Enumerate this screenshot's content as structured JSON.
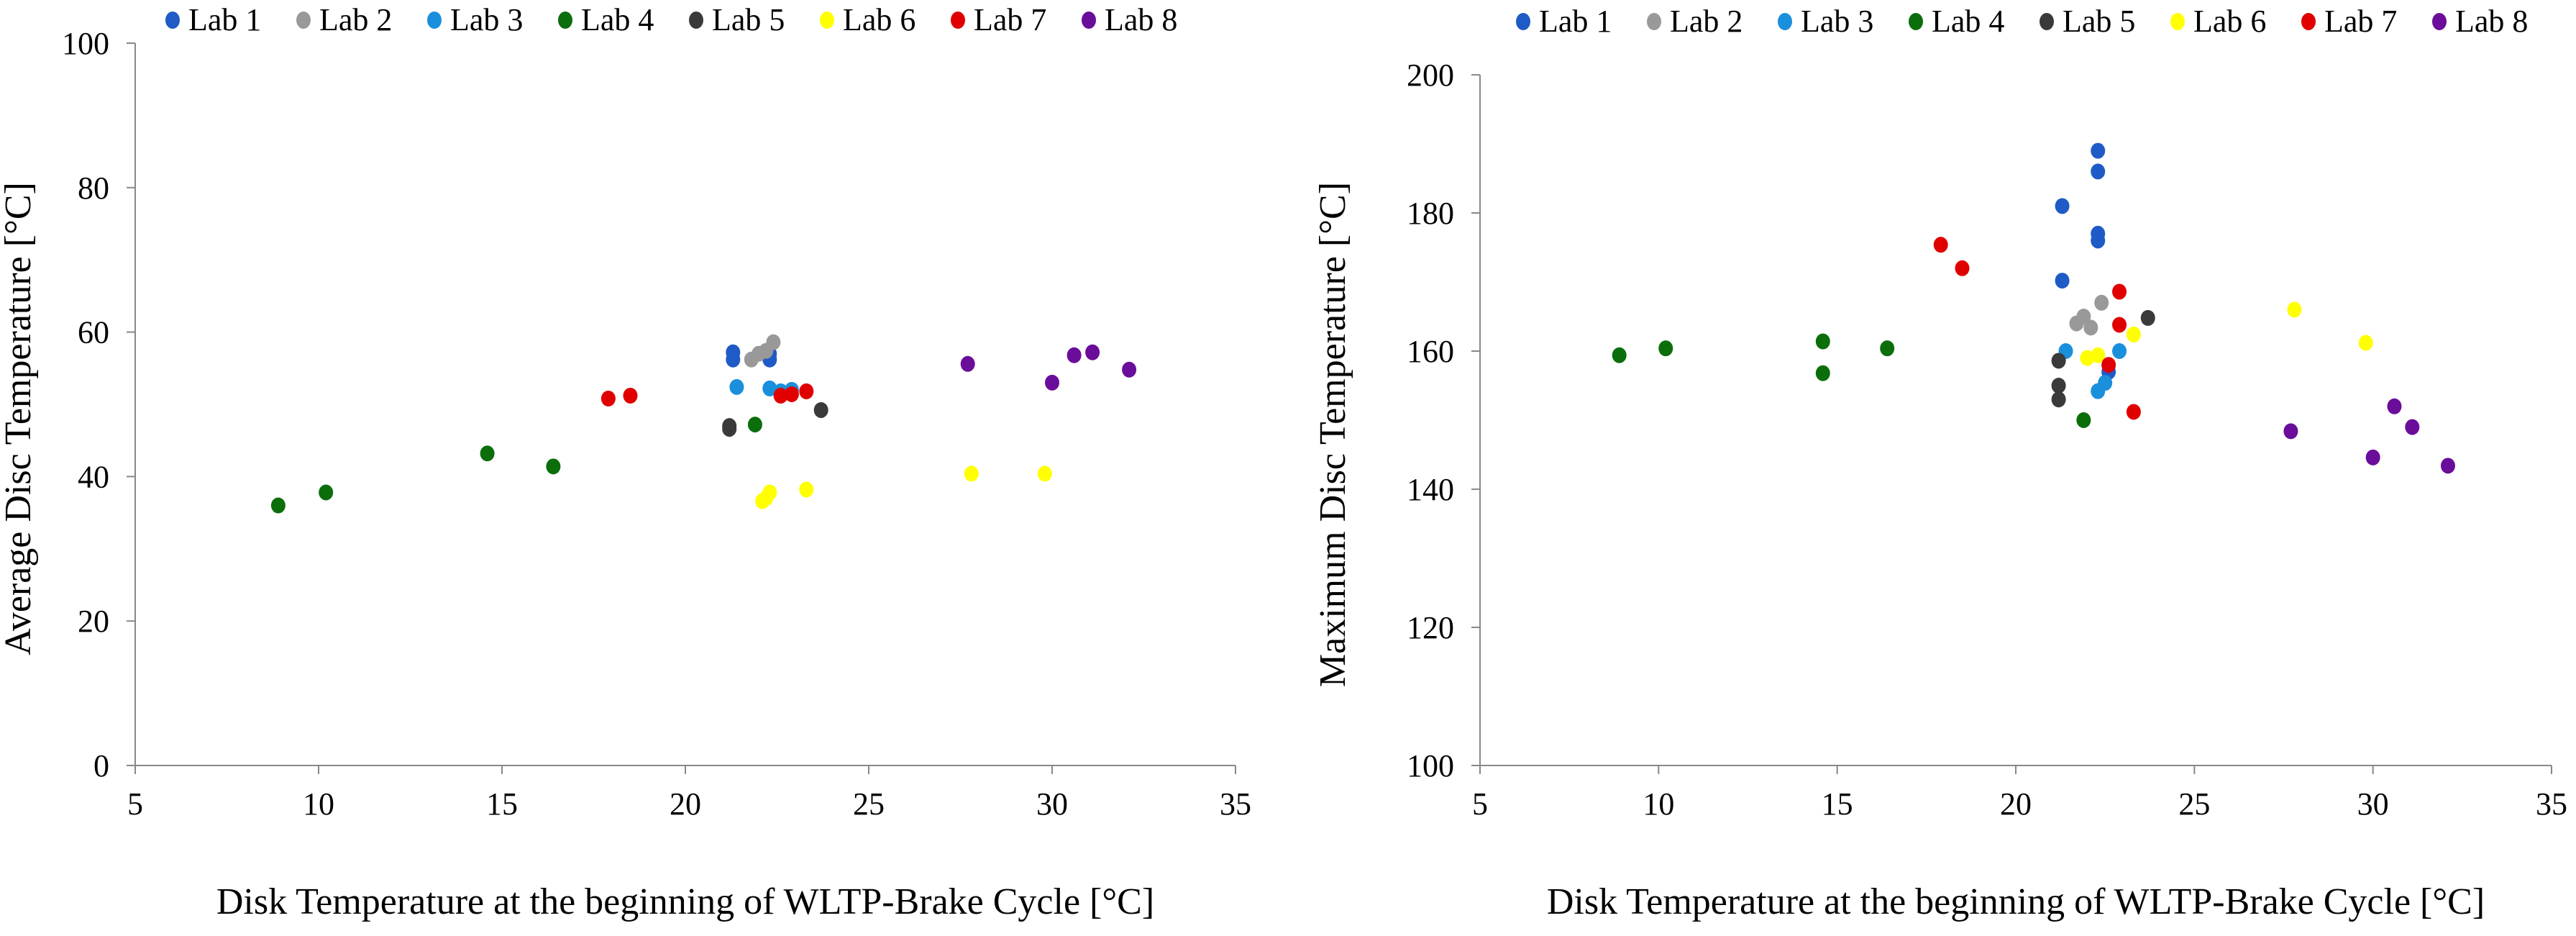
{
  "chart_data": [
    {
      "type": "scatter",
      "xlabel": "Disk Temperature at the beginning of WLTP-Brake Cycle [°C]",
      "ylabel": "Average Disc Temperature [°C]",
      "xlim": [
        5,
        35
      ],
      "ylim": [
        0,
        100
      ],
      "x_ticks": [
        5,
        10,
        15,
        20,
        25,
        30,
        35
      ],
      "y_ticks": [
        0,
        20,
        40,
        60,
        80,
        100
      ],
      "grid": false,
      "legend_position": "top",
      "series": [
        {
          "name": "Lab 1",
          "color": "#1f5bc6",
          "points": [
            [
              21.3,
              57.2
            ],
            [
              21.3,
              56.2
            ],
            [
              22.3,
              57.0
            ],
            [
              22.3,
              56.2
            ]
          ]
        },
        {
          "name": "Lab 2",
          "color": "#999999",
          "points": [
            [
              21.8,
              56.2
            ],
            [
              22.0,
              57.0
            ],
            [
              22.2,
              57.4
            ],
            [
              22.4,
              58.6
            ]
          ]
        },
        {
          "name": "Lab 3",
          "color": "#1a8fdc",
          "points": [
            [
              21.4,
              52.4
            ],
            [
              22.3,
              52.2
            ],
            [
              22.6,
              51.8
            ],
            [
              22.9,
              52.0
            ]
          ]
        },
        {
          "name": "Lab 4",
          "color": "#0b6e0b",
          "points": [
            [
              8.9,
              36.0
            ],
            [
              10.2,
              37.8
            ],
            [
              14.6,
              43.2
            ],
            [
              16.4,
              41.4
            ],
            [
              21.9,
              47.2
            ]
          ]
        },
        {
          "name": "Lab 5",
          "color": "#3a3a3a",
          "points": [
            [
              21.2,
              47.0
            ],
            [
              21.2,
              46.6
            ],
            [
              23.7,
              49.2
            ]
          ]
        },
        {
          "name": "Lab 6",
          "color": "#ffff00",
          "points": [
            [
              22.1,
              36.6
            ],
            [
              22.2,
              37.0
            ],
            [
              22.3,
              37.8
            ],
            [
              23.3,
              38.2
            ],
            [
              27.8,
              40.4
            ],
            [
              29.8,
              40.4
            ]
          ]
        },
        {
          "name": "Lab 7",
          "color": "#e00000",
          "points": [
            [
              17.9,
              50.8
            ],
            [
              18.5,
              51.2
            ],
            [
              22.6,
              51.2
            ],
            [
              22.9,
              51.4
            ],
            [
              23.3,
              51.8
            ]
          ]
        },
        {
          "name": "Lab 8",
          "color": "#6a0d9a",
          "points": [
            [
              27.7,
              55.6
            ],
            [
              30.0,
              53.0
            ],
            [
              30.6,
              56.8
            ],
            [
              31.1,
              57.2
            ],
            [
              32.1,
              54.8
            ]
          ]
        }
      ]
    },
    {
      "type": "scatter",
      "xlabel": "Disk Temperature at the beginning of WLTP-Brake Cycle [°C]",
      "ylabel": "Maximum Disc Temperature [°C]",
      "xlim": [
        5,
        35
      ],
      "ylim": [
        100,
        200
      ],
      "x_ticks": [
        5,
        10,
        15,
        20,
        25,
        30,
        35
      ],
      "y_ticks": [
        100,
        120,
        140,
        160,
        180,
        200
      ],
      "grid": false,
      "legend_position": "top",
      "series": [
        {
          "name": "Lab 1",
          "color": "#1f5bc6",
          "points": [
            [
              21.3,
              181.0
            ],
            [
              21.3,
              170.2
            ],
            [
              22.3,
              189.0
            ],
            [
              22.3,
              186.0
            ],
            [
              22.3,
              177.0
            ],
            [
              22.3,
              176.0
            ],
            [
              22.6,
              157.0
            ]
          ]
        },
        {
          "name": "Lab 2",
          "color": "#999999",
          "points": [
            [
              21.7,
              164.0
            ],
            [
              21.9,
              165.0
            ],
            [
              22.1,
              163.4
            ],
            [
              22.4,
              167.0
            ]
          ]
        },
        {
          "name": "Lab 3",
          "color": "#1a8fdc",
          "points": [
            [
              21.4,
              160.0
            ],
            [
              22.3,
              154.2
            ],
            [
              22.5,
              155.4
            ],
            [
              22.9,
              160.0
            ]
          ]
        },
        {
          "name": "Lab 4",
          "color": "#0b6e0b",
          "points": [
            [
              8.9,
              159.4
            ],
            [
              10.2,
              160.4
            ],
            [
              14.6,
              161.4
            ],
            [
              14.6,
              156.8
            ],
            [
              16.4,
              160.4
            ],
            [
              21.9,
              150.0
            ]
          ]
        },
        {
          "name": "Lab 5",
          "color": "#3a3a3a",
          "points": [
            [
              21.2,
              158.6
            ],
            [
              21.2,
              155.0
            ],
            [
              21.2,
              153.0
            ],
            [
              23.7,
              164.8
            ]
          ]
        },
        {
          "name": "Lab 6",
          "color": "#ffff00",
          "points": [
            [
              22.0,
              159.0
            ],
            [
              22.3,
              159.4
            ],
            [
              23.3,
              162.4
            ],
            [
              27.8,
              166.0
            ],
            [
              29.8,
              161.2
            ]
          ]
        },
        {
          "name": "Lab 7",
          "color": "#e00000",
          "points": [
            [
              17.9,
              175.4
            ],
            [
              18.5,
              172.0
            ],
            [
              22.6,
              158.0
            ],
            [
              22.9,
              168.6
            ],
            [
              22.9,
              163.8
            ],
            [
              23.3,
              151.2
            ]
          ]
        },
        {
          "name": "Lab 8",
          "color": "#6a0d9a",
          "points": [
            [
              27.7,
              148.4
            ],
            [
              30.0,
              144.6
            ],
            [
              30.6,
              152.0
            ],
            [
              31.1,
              149.0
            ],
            [
              32.1,
              143.4
            ]
          ]
        }
      ]
    }
  ]
}
